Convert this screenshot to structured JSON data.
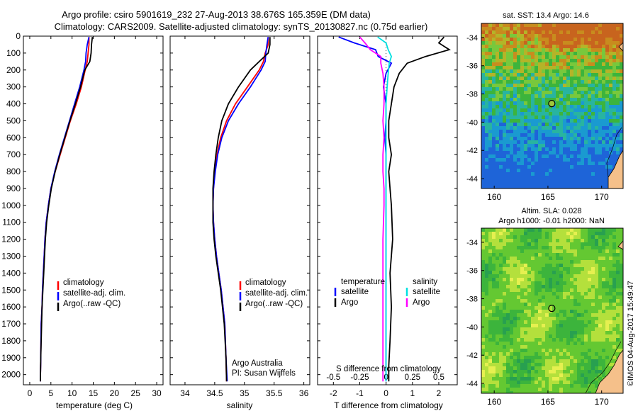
{
  "header": {
    "line1": "Argo profile: csiro 5901619_232 27-Aug-2013 38.676S 165.359E (DM data)",
    "line2": "Climatology: CARS2009. Satellite-adjusted climatology: synTS_20130827.nc (0.75d earlier)"
  },
  "side_stamp": "©IMOS 04-Aug-2017 15:49:47",
  "colors": {
    "climatology": "#ff0000",
    "satellite": "#0000ff",
    "argo": "#000000",
    "salinity_satellite": "#00e0e0",
    "salinity_argo": "#ff00ff",
    "land": "#f5c08a"
  },
  "chart_data": [
    {
      "type": "line",
      "id": "temperature",
      "xlabel": "temperature (deg C)",
      "xlim": [
        -1.5,
        31.5
      ],
      "xticks": [
        0,
        5,
        10,
        15,
        20,
        25,
        30
      ],
      "ylim": [
        2060,
        0
      ],
      "yticks": [
        0,
        100,
        200,
        300,
        400,
        500,
        600,
        700,
        800,
        900,
        1000,
        1100,
        1200,
        1300,
        1400,
        1500,
        1600,
        1700,
        1800,
        1900,
        2000
      ],
      "legend": [
        "climatology",
        "satellite-adj. clim.",
        "Argo(..raw -QC)"
      ],
      "series": [
        {
          "name": "climatology",
          "color": "#ff0000",
          "x": [
            14.0,
            14.0,
            13.8,
            13.6,
            13.1,
            12.2,
            11.0,
            9.6,
            8.4,
            7.2,
            6.0,
            5.0,
            4.4,
            3.9,
            3.6,
            3.4,
            3.2,
            3.0,
            2.9,
            2.7,
            2.6,
            2.5
          ],
          "y": [
            5,
            50,
            100,
            150,
            200,
            300,
            400,
            500,
            600,
            700,
            800,
            900,
            1000,
            1100,
            1200,
            1300,
            1400,
            1500,
            1600,
            1700,
            1900,
            2040
          ]
        },
        {
          "name": "satellite-adj. clim.",
          "color": "#0000ff",
          "x": [
            14.0,
            13.6,
            13.3,
            13.2,
            12.8,
            11.8,
            10.6,
            9.4,
            8.2,
            7.0,
            5.9,
            5.0,
            4.4,
            3.9,
            3.6,
            3.4,
            3.2,
            3.0,
            2.9,
            2.7,
            2.6,
            2.5
          ],
          "y": [
            5,
            50,
            100,
            150,
            200,
            300,
            400,
            500,
            600,
            700,
            800,
            900,
            1000,
            1100,
            1200,
            1300,
            1400,
            1500,
            1600,
            1700,
            1900,
            2040
          ]
        },
        {
          "name": "Argo(..raw -QC)",
          "color": "#000000",
          "x": [
            14.8,
            14.6,
            14.5,
            14.2,
            13.0,
            12.0,
            10.8,
            9.5,
            8.3,
            7.1,
            6.0,
            5.1,
            4.5,
            4.0,
            3.7,
            3.5,
            3.3,
            3.1,
            2.9,
            2.8,
            2.6,
            2.5
          ],
          "y": [
            5,
            50,
            100,
            150,
            200,
            300,
            400,
            500,
            600,
            700,
            800,
            900,
            1000,
            1100,
            1200,
            1300,
            1400,
            1500,
            1600,
            1700,
            1900,
            2040
          ]
        }
      ]
    },
    {
      "type": "line",
      "id": "salinity",
      "xlabel": "salinity",
      "xlim": [
        33.75,
        36.1
      ],
      "xticks": [
        34,
        34.5,
        35,
        35.5,
        36
      ],
      "ylim": [
        2060,
        0
      ],
      "legend": [
        "climatology",
        "satellite-adj. clim.",
        "Argo(..raw -QC)"
      ],
      "annotation": [
        "Argo Australia",
        "PI: Susan Wijffels"
      ],
      "series": [
        {
          "name": "climatology",
          "color": "#ff0000",
          "x": [
            35.4,
            35.4,
            35.35,
            35.32,
            35.25,
            35.05,
            34.85,
            34.7,
            34.6,
            34.54,
            34.5,
            34.48,
            34.47,
            34.48,
            34.5,
            34.53,
            34.57,
            34.61,
            34.64,
            34.67,
            34.69,
            34.7
          ],
          "y": [
            5,
            50,
            100,
            150,
            200,
            300,
            400,
            500,
            600,
            700,
            800,
            900,
            1000,
            1100,
            1200,
            1300,
            1400,
            1500,
            1600,
            1700,
            1900,
            2040
          ]
        },
        {
          "name": "satellite-adj. clim.",
          "color": "#0000ff",
          "x": [
            35.4,
            35.38,
            35.36,
            35.35,
            35.28,
            35.1,
            34.9,
            34.73,
            34.62,
            34.55,
            34.51,
            34.48,
            34.47,
            34.48,
            34.5,
            34.53,
            34.57,
            34.61,
            34.64,
            34.67,
            34.69,
            34.71
          ],
          "y": [
            5,
            50,
            100,
            150,
            200,
            300,
            400,
            500,
            600,
            700,
            800,
            900,
            1000,
            1100,
            1200,
            1300,
            1400,
            1500,
            1600,
            1700,
            1900,
            2040
          ]
        },
        {
          "name": "Argo(..raw -QC)",
          "color": "#000000",
          "x": [
            35.43,
            35.43,
            35.4,
            35.25,
            35.1,
            34.9,
            34.73,
            34.62,
            34.56,
            34.52,
            34.49,
            34.47,
            34.47,
            34.47,
            34.49,
            34.52,
            34.56,
            34.6,
            34.63,
            34.66,
            34.69,
            34.7
          ],
          "y": [
            5,
            50,
            100,
            150,
            200,
            300,
            400,
            500,
            600,
            700,
            800,
            900,
            1000,
            1100,
            1200,
            1300,
            1400,
            1500,
            1600,
            1700,
            1900,
            2040
          ]
        }
      ]
    },
    {
      "type": "line",
      "id": "difference",
      "xlabel": "T difference from climatology",
      "xlabel2": "S difference from climatology",
      "xlim": [
        -2.6,
        2.7
      ],
      "xticks": [
        -2,
        -1,
        0,
        1,
        2
      ],
      "xticks2": [
        -0.5,
        -0.25,
        0,
        0.25,
        0.5
      ],
      "xticks2_labels": [
        "-0.5",
        "-0.25",
        "0",
        "0.25",
        "0.5"
      ],
      "ylim": [
        2060,
        0
      ],
      "legend_temperature": {
        "title": "temperature",
        "entries": [
          "satellite",
          "Argo"
        ]
      },
      "legend_salinity": {
        "title": "salinity",
        "entries": [
          "satellite",
          "Argo"
        ]
      },
      "series": [
        {
          "name": "temperature satellite",
          "color": "#0000ff",
          "x": [
            -1.8,
            -1.2,
            -0.4,
            -0.3,
            0.2,
            0.0,
            -0.1,
            0.0,
            0.0,
            -0.05,
            0.0,
            0.0,
            0.0,
            0.0,
            0.0,
            0.0,
            0.0,
            0.0,
            0.0,
            0.0
          ],
          "y": [
            5,
            40,
            80,
            120,
            160,
            220,
            300,
            400,
            500,
            600,
            700,
            800,
            900,
            1000,
            1200,
            1400,
            1600,
            1800,
            1950,
            2040
          ]
        },
        {
          "name": "temperature Argo",
          "color": "#000000",
          "x": [
            2.2,
            2.0,
            2.4,
            1.5,
            0.8,
            0.5,
            0.3,
            0.2,
            0.1,
            0.1,
            0.2,
            0.1,
            0.15,
            0.2,
            0.25,
            0.15,
            0.2,
            0.15,
            0.1,
            0.1
          ],
          "y": [
            5,
            40,
            80,
            120,
            160,
            220,
            300,
            400,
            500,
            600,
            700,
            800,
            900,
            1000,
            1200,
            1400,
            1600,
            1800,
            1950,
            2040
          ]
        },
        {
          "name": "salinity satellite",
          "color": "#00e0e0",
          "x": [
            -0.08,
            0.0,
            0.02,
            0.05,
            0.03,
            0.02,
            0.01,
            0.0,
            0.0,
            0.0,
            0.0,
            0.0,
            0.0,
            0.0,
            0.0,
            0.0,
            0.0,
            0.0,
            0.0,
            0.0
          ],
          "y": [
            5,
            40,
            80,
            120,
            160,
            220,
            300,
            400,
            500,
            600,
            700,
            800,
            900,
            1000,
            1200,
            1400,
            1600,
            1800,
            1950,
            2040
          ]
        },
        {
          "name": "salinity Argo",
          "color": "#ff00ff",
          "x": [
            -0.25,
            -0.2,
            -0.15,
            -0.05,
            -0.05,
            -0.03,
            -0.02,
            -0.02,
            -0.03,
            -0.02,
            -0.03,
            -0.03,
            -0.02,
            -0.02,
            -0.03,
            -0.03,
            -0.03,
            -0.03,
            -0.03,
            -0.03
          ],
          "y": [
            5,
            40,
            80,
            120,
            160,
            220,
            300,
            400,
            500,
            600,
            700,
            800,
            900,
            1000,
            1200,
            1400,
            1600,
            1800,
            1950,
            2040
          ]
        }
      ]
    },
    {
      "type": "heatmap",
      "id": "sst-map",
      "title": "sat. SST: 13.4 Argo: 14.6",
      "xticks": [
        160,
        165,
        170
      ],
      "yticks": [
        -34,
        -36,
        -38,
        -40,
        -42,
        -44
      ],
      "xlim": [
        158.8,
        172
      ],
      "ylim": [
        -44.7,
        -33
      ],
      "marker": {
        "lon": 165.36,
        "lat": -38.68
      }
    },
    {
      "type": "heatmap",
      "id": "sla-map",
      "title_lines": [
        "Altim. SLA: 0.028",
        "Argo h1000: -0.01 h2000: NaN"
      ],
      "xticks": [
        160,
        165,
        170
      ],
      "yticks": [
        -34,
        -36,
        -38,
        -40,
        -42,
        -44
      ],
      "xlim": [
        158.8,
        172
      ],
      "ylim": [
        -44.7,
        -33
      ],
      "marker": {
        "lon": 165.36,
        "lat": -38.68
      }
    }
  ]
}
